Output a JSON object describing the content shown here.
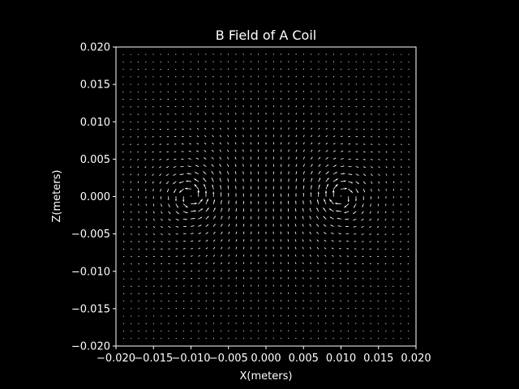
{
  "chart_data": {
    "type": "quiver",
    "title": "B Field of A Coil",
    "xlabel": "X(meters)",
    "ylabel": "Z(meters)",
    "xlim": [
      -0.02,
      0.02
    ],
    "ylim": [
      -0.02,
      0.02
    ],
    "xticks": [
      -0.02,
      -0.015,
      -0.01,
      -0.005,
      0.0,
      0.005,
      0.01,
      0.015,
      0.02
    ],
    "xtick_labels": [
      "−0.020",
      "−0.015",
      "−0.010",
      "−0.005",
      "0.000",
      "0.005",
      "0.010",
      "0.015",
      "0.020"
    ],
    "yticks": [
      0.02,
      0.015,
      0.01,
      0.005,
      0.0,
      -0.005,
      -0.01,
      -0.015,
      -0.02
    ],
    "ytick_labels": [
      "0.020",
      "0.015",
      "0.010",
      "0.005",
      "0.000",
      "−0.005",
      "−0.010",
      "−0.015",
      "−0.020"
    ],
    "grid": false,
    "background": "#000000",
    "foreground": "#ffffff",
    "arrow_color": "#ffffff",
    "coil_loop_positions_x": [
      -0.01,
      0.01
    ],
    "coil_loop_position_z": 0.0,
    "grid_spacing": 0.001
  }
}
